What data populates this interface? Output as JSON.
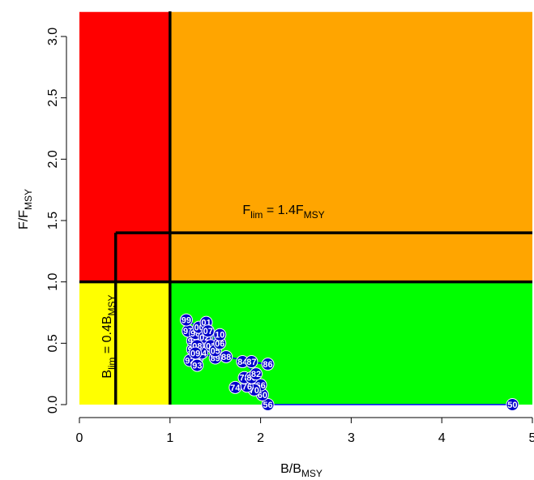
{
  "chart_data": {
    "type": "scatter",
    "title": "",
    "xlabel": {
      "main": "B/B",
      "sub": "MSY"
    },
    "ylabel": {
      "main": "F/F",
      "sub": "MSY"
    },
    "xlim": [
      0,
      5
    ],
    "ylim": [
      0,
      3.2
    ],
    "x_ticks": [
      0,
      1,
      2,
      3,
      4,
      5
    ],
    "x_tick_labels": [
      "0",
      "1",
      "2",
      "3",
      "4",
      "5"
    ],
    "y_ticks": [
      0,
      0.5,
      1,
      1.5,
      2,
      2.5,
      3
    ],
    "y_tick_labels": [
      "0.0",
      "0.5",
      "1.0",
      "1.5",
      "2.0",
      "2.5",
      "3.0"
    ],
    "zones": [
      {
        "name": "red",
        "color": "#ff0000",
        "x": [
          0,
          1
        ],
        "y": [
          1,
          3.2
        ]
      },
      {
        "name": "orange",
        "color": "#ffa500",
        "x": [
          1,
          5
        ],
        "y": [
          1,
          3.2
        ]
      },
      {
        "name": "yellow",
        "color": "#ffff00",
        "x": [
          0,
          1
        ],
        "y": [
          0,
          1
        ]
      },
      {
        "name": "green",
        "color": "#00ff00",
        "x": [
          1,
          5
        ],
        "y": [
          0,
          1
        ]
      }
    ],
    "reference_lines": {
      "Bmsy": 1,
      "Fmsy": 1,
      "Blim": 0.4,
      "Flim": 1.4
    },
    "annotations": {
      "flim": {
        "pre": "F",
        "sub": "lim",
        "mid": " = 1.4F",
        "sub2": "MSY"
      },
      "blim": {
        "pre": "B",
        "sub": "lim",
        "mid": " = 0.4B",
        "sub2": "MSY"
      }
    },
    "series": [
      {
        "point_color": "#0000cc",
        "line_color": "#0000ff",
        "points": [
          {
            "label": "50",
            "x": 4.78,
            "y": 0.0
          },
          {
            "label": "56",
            "x": 2.08,
            "y": 0.0
          },
          {
            "label": "60",
            "x": 2.02,
            "y": 0.08
          },
          {
            "label": "66",
            "x": 2.0,
            "y": 0.16
          },
          {
            "label": "70",
            "x": 1.93,
            "y": 0.12
          },
          {
            "label": "74",
            "x": 1.72,
            "y": 0.14
          },
          {
            "label": "76",
            "x": 1.85,
            "y": 0.15
          },
          {
            "label": "78",
            "x": 1.82,
            "y": 0.22
          },
          {
            "label": "80",
            "x": 1.9,
            "y": 0.22
          },
          {
            "label": "82",
            "x": 1.95,
            "y": 0.25
          },
          {
            "label": "84",
            "x": 1.8,
            "y": 0.35
          },
          {
            "label": "86",
            "x": 2.08,
            "y": 0.33
          },
          {
            "label": "87",
            "x": 1.9,
            "y": 0.35
          },
          {
            "label": "88",
            "x": 1.62,
            "y": 0.39
          },
          {
            "label": "89",
            "x": 1.5,
            "y": 0.38
          },
          {
            "label": "90",
            "x": 1.25,
            "y": 0.45
          },
          {
            "label": "91",
            "x": 1.3,
            "y": 0.38
          },
          {
            "label": "92",
            "x": 1.22,
            "y": 0.36
          },
          {
            "label": "93",
            "x": 1.3,
            "y": 0.32
          },
          {
            "label": "94",
            "x": 1.25,
            "y": 0.52
          },
          {
            "label": "95",
            "x": 1.4,
            "y": 0.55
          },
          {
            "label": "96",
            "x": 1.35,
            "y": 0.47
          },
          {
            "label": "97",
            "x": 1.2,
            "y": 0.6
          },
          {
            "label": "98",
            "x": 1.28,
            "y": 0.58
          },
          {
            "label": "99",
            "x": 1.18,
            "y": 0.69
          },
          {
            "label": "00",
            "x": 1.32,
            "y": 0.63
          },
          {
            "label": "01",
            "x": 1.4,
            "y": 0.67
          },
          {
            "label": "02",
            "x": 1.38,
            "y": 0.55
          },
          {
            "label": "03",
            "x": 1.45,
            "y": 0.48
          },
          {
            "label": "04",
            "x": 1.35,
            "y": 0.42
          },
          {
            "label": "05",
            "x": 1.5,
            "y": 0.44
          },
          {
            "label": "06",
            "x": 1.55,
            "y": 0.5
          },
          {
            "label": "07",
            "x": 1.42,
            "y": 0.6
          },
          {
            "label": "08",
            "x": 1.3,
            "y": 0.48
          },
          {
            "label": "09",
            "x": 1.28,
            "y": 0.42
          },
          {
            "label": "10",
            "x": 1.55,
            "y": 0.57
          }
        ]
      }
    ]
  }
}
